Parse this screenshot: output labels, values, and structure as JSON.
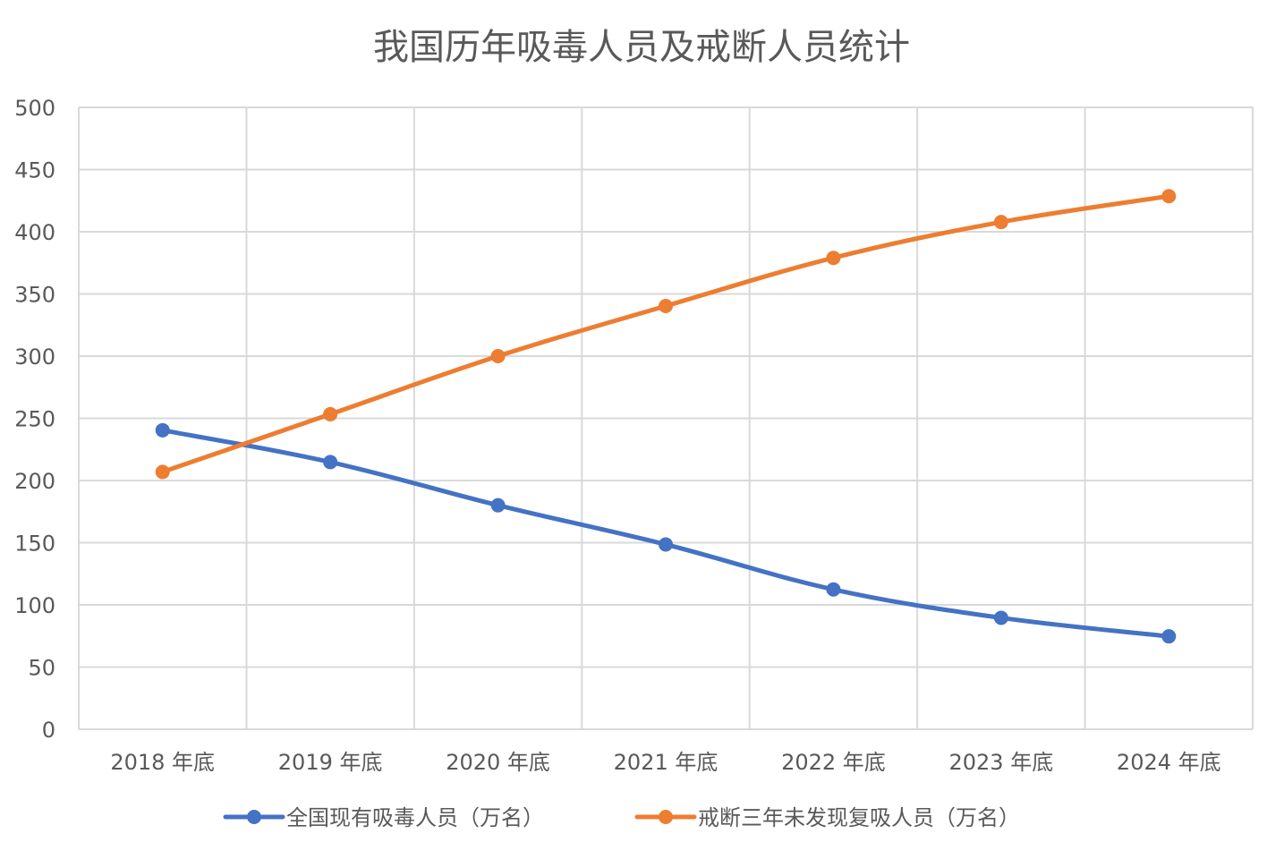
{
  "chart_data": {
    "type": "line",
    "title": "我国历年吸毒人员及戒断人员统计",
    "xlabel": "",
    "ylabel": "",
    "categories": [
      "2018 年底",
      "2019 年底",
      "2020 年底",
      "2021 年底",
      "2022 年底",
      "2023 年底",
      "2024 年底"
    ],
    "ylim": [
      0,
      500
    ],
    "yticks": [
      0,
      50,
      100,
      150,
      200,
      250,
      300,
      350,
      400,
      450,
      500
    ],
    "grid": true,
    "legend_position": "bottom",
    "series": [
      {
        "name": "全国现有吸毒人员（万名）",
        "color": "#4472c4",
        "values": [
          240.4,
          214.8,
          180.1,
          148.6,
          112.4,
          89.6,
          74.7
        ]
      },
      {
        "name": "戒断三年未发现复吸人员（万名）",
        "color": "#ed7d31",
        "values": [
          206.9,
          253.3,
          300.0,
          340.3,
          379.0,
          407.8,
          428.6
        ]
      }
    ]
  }
}
